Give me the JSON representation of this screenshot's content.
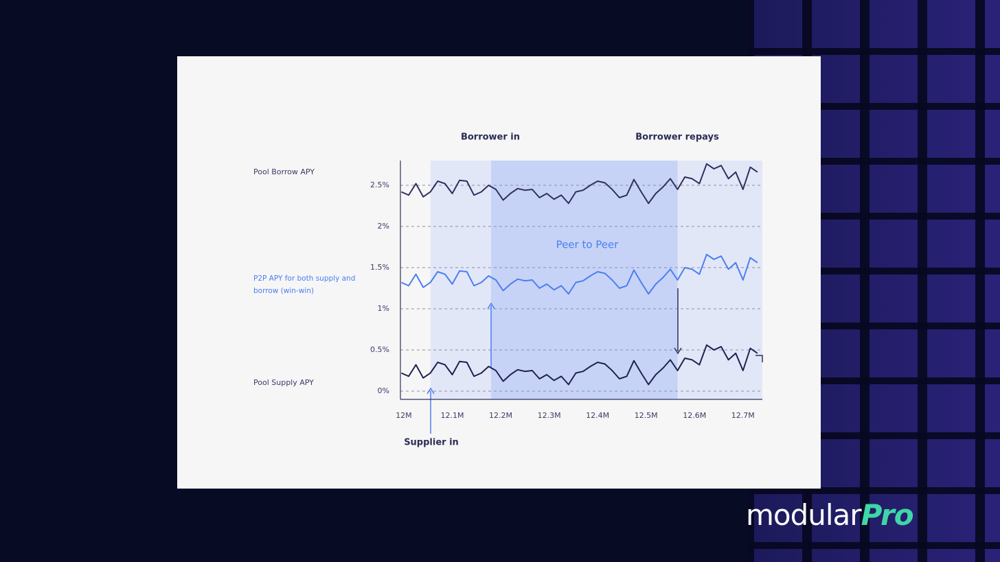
{
  "chart_data": {
    "type": "line",
    "x": [
      11.995,
      12.01,
      12.025,
      12.04,
      12.055,
      12.07,
      12.085,
      12.1,
      12.115,
      12.13,
      12.145,
      12.16,
      12.175,
      12.19,
      12.205,
      12.22,
      12.235,
      12.25,
      12.265,
      12.28,
      12.295,
      12.31,
      12.325,
      12.34,
      12.355,
      12.37,
      12.385,
      12.4,
      12.415,
      12.43,
      12.445,
      12.46,
      12.475,
      12.49,
      12.505,
      12.52,
      12.535,
      12.55,
      12.565,
      12.58,
      12.595,
      12.61,
      12.625,
      12.64,
      12.655,
      12.67,
      12.685,
      12.7,
      12.715,
      12.73
    ],
    "series": [
      {
        "name": "Pool Borrow APY",
        "color": "#2e2f5e",
        "values": [
          2.42,
          2.38,
          2.52,
          2.36,
          2.42,
          2.55,
          2.52,
          2.4,
          2.56,
          2.55,
          2.38,
          2.42,
          2.5,
          2.45,
          2.32,
          2.4,
          2.46,
          2.44,
          2.45,
          2.35,
          2.4,
          2.33,
          2.38,
          2.28,
          2.42,
          2.44,
          2.5,
          2.55,
          2.53,
          2.45,
          2.35,
          2.38,
          2.57,
          2.42,
          2.28,
          2.4,
          2.48,
          2.58,
          2.45,
          2.6,
          2.58,
          2.52,
          2.76,
          2.7,
          2.74,
          2.58,
          2.66,
          2.45,
          2.72,
          2.66
        ]
      },
      {
        "name": "P2P APY for both supply and borrow (win-win)",
        "color": "#4a7ef0",
        "values": [
          1.32,
          1.28,
          1.42,
          1.26,
          1.32,
          1.45,
          1.42,
          1.3,
          1.46,
          1.45,
          1.28,
          1.32,
          1.4,
          1.35,
          1.22,
          1.3,
          1.36,
          1.34,
          1.35,
          1.25,
          1.3,
          1.23,
          1.28,
          1.18,
          1.32,
          1.34,
          1.4,
          1.45,
          1.43,
          1.35,
          1.25,
          1.28,
          1.47,
          1.32,
          1.18,
          1.3,
          1.38,
          1.48,
          1.35,
          1.5,
          1.48,
          1.42,
          1.66,
          1.6,
          1.64,
          1.48,
          1.56,
          1.35,
          1.62,
          1.56
        ]
      },
      {
        "name": "Pool Supply APY",
        "color": "#1f2050",
        "values": [
          0.22,
          0.18,
          0.32,
          0.16,
          0.22,
          0.35,
          0.32,
          0.2,
          0.36,
          0.35,
          0.18,
          0.22,
          0.3,
          0.25,
          0.12,
          0.2,
          0.26,
          0.24,
          0.25,
          0.15,
          0.2,
          0.13,
          0.18,
          0.08,
          0.22,
          0.24,
          0.3,
          0.35,
          0.33,
          0.25,
          0.15,
          0.18,
          0.37,
          0.22,
          0.08,
          0.2,
          0.28,
          0.38,
          0.25,
          0.4,
          0.38,
          0.32,
          0.56,
          0.5,
          0.54,
          0.38,
          0.46,
          0.25,
          0.52,
          0.46
        ]
      }
    ],
    "xlim": [
      11.993,
      12.74
    ],
    "ylim": [
      -0.1,
      2.8
    ],
    "xticks": [
      {
        "value": 12,
        "label": "12M"
      },
      {
        "value": 12.1,
        "label": "12.1M"
      },
      {
        "value": 12.2,
        "label": "12.2M"
      },
      {
        "value": 12.3,
        "label": "12.3M"
      },
      {
        "value": 12.4,
        "label": "12.4M"
      },
      {
        "value": 12.5,
        "label": "12.5M"
      },
      {
        "value": 12.6,
        "label": "12.6M"
      },
      {
        "value": 12.7,
        "label": "12.7M"
      }
    ],
    "yticks": [
      {
        "value": 0,
        "label": "0%"
      },
      {
        "value": 0.5,
        "label": "0.5%"
      },
      {
        "value": 1,
        "label": "1%"
      },
      {
        "value": 1.5,
        "label": "1.5%"
      },
      {
        "value": 2,
        "label": "2%"
      },
      {
        "value": 2.5,
        "label": "2.5%"
      }
    ],
    "grid": true,
    "regions": [
      {
        "start": 12.055,
        "end": 12.74,
        "color": "#e2e7f8"
      },
      {
        "start": 12.18,
        "end": 12.565,
        "color": "#c7d3f6"
      }
    ],
    "annotations": {
      "borrower_in": "Borrower in",
      "borrower_repays": "Borrower repays",
      "peer": "Peer to Peer",
      "supplier_in": "Supplier in"
    }
  },
  "logo": {
    "text": "modular",
    "accent": "Pro"
  }
}
